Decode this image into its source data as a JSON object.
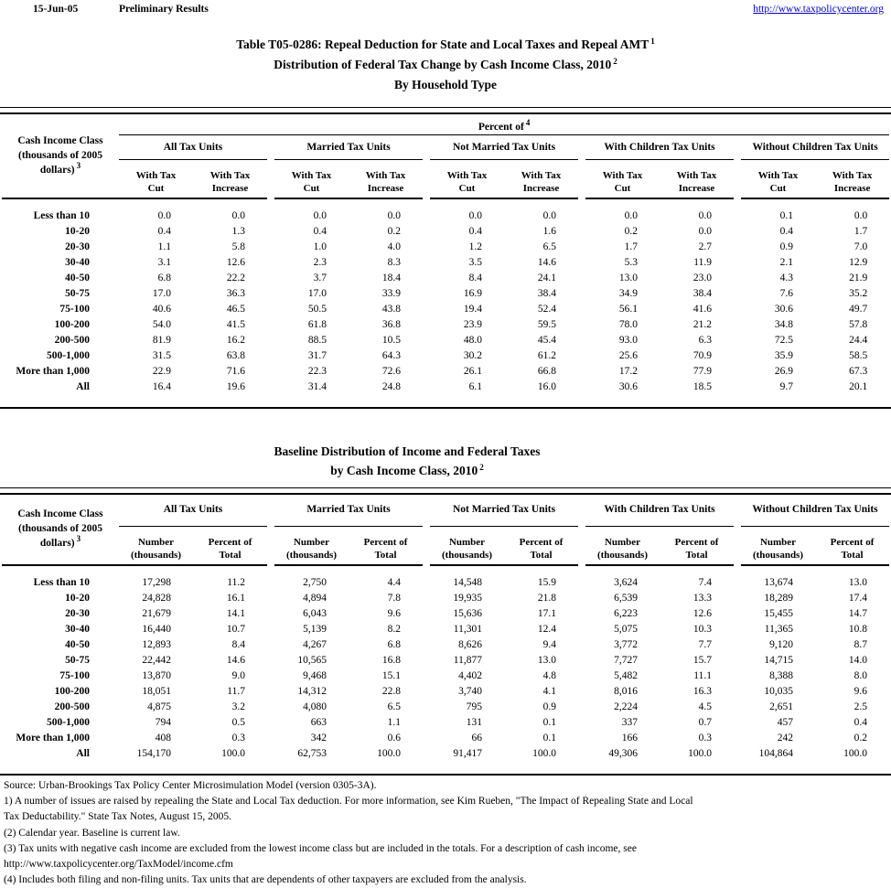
{
  "page": {
    "date": "15-Jun-05",
    "status": "Preliminary Results",
    "url": "http://www.taxpolicycenter.org",
    "colors": {
      "link": "#0000cc",
      "text": "#000000",
      "background": "#ffffff",
      "rule": "#000000"
    }
  },
  "title1": {
    "line1": "Table T05-0286: Repeal Deduction for State and Local Taxes and Repeal AMT",
    "line1_sup": "1",
    "line2": "Distribution of Federal Tax Change by Cash Income Class, 2010",
    "line2_sup": "2",
    "line3": "By Household Type"
  },
  "title2": {
    "line1": "Baseline Distribution of Income and Federal Taxes",
    "line2": "by Cash Income Class, 2010",
    "line2_sup": "2"
  },
  "row_label_header": {
    "line1": "Cash Income Class",
    "line2": "(thousands of 2005",
    "line3": "dollars)",
    "sup": "3"
  },
  "groups": [
    "All Tax Units",
    "Married Tax Units",
    "Not Married Tax Units",
    "With Children Tax Units",
    "Without Children Tax Units"
  ],
  "table1": {
    "span_header": "Percent of",
    "span_header_sup": "4",
    "sub_cut_l1": "With Tax",
    "sub_cut_l2": "Cut",
    "sub_inc_l1": "With Tax",
    "sub_inc_l2": "Increase",
    "rows": [
      [
        "Less than 10",
        "0.0",
        "0.0",
        "0.0",
        "0.0",
        "0.0",
        "0.0",
        "0.0",
        "0.0",
        "0.1",
        "0.0"
      ],
      [
        "10-20",
        "0.4",
        "1.3",
        "0.4",
        "0.2",
        "0.4",
        "1.6",
        "0.2",
        "0.0",
        "0.4",
        "1.7"
      ],
      [
        "20-30",
        "1.1",
        "5.8",
        "1.0",
        "4.0",
        "1.2",
        "6.5",
        "1.7",
        "2.7",
        "0.9",
        "7.0"
      ],
      [
        "30-40",
        "3.1",
        "12.6",
        "2.3",
        "8.3",
        "3.5",
        "14.6",
        "5.3",
        "11.9",
        "2.1",
        "12.9"
      ],
      [
        "40-50",
        "6.8",
        "22.2",
        "3.7",
        "18.4",
        "8.4",
        "24.1",
        "13.0",
        "23.0",
        "4.3",
        "21.9"
      ],
      [
        "50-75",
        "17.0",
        "36.3",
        "17.0",
        "33.9",
        "16.9",
        "38.4",
        "34.9",
        "38.4",
        "7.6",
        "35.2"
      ],
      [
        "75-100",
        "40.6",
        "46.5",
        "50.5",
        "43.8",
        "19.4",
        "52.4",
        "56.1",
        "41.6",
        "30.6",
        "49.7"
      ],
      [
        "100-200",
        "54.0",
        "41.5",
        "61.8",
        "36.8",
        "23.9",
        "59.5",
        "78.0",
        "21.2",
        "34.8",
        "57.8"
      ],
      [
        "200-500",
        "81.9",
        "16.2",
        "88.5",
        "10.5",
        "48.0",
        "45.4",
        "93.0",
        "6.3",
        "72.5",
        "24.4"
      ],
      [
        "500-1,000",
        "31.5",
        "63.8",
        "31.7",
        "64.3",
        "30.2",
        "61.2",
        "25.6",
        "70.9",
        "35.9",
        "58.5"
      ],
      [
        "More than 1,000",
        "22.9",
        "71.6",
        "22.3",
        "72.6",
        "26.1",
        "66.8",
        "17.2",
        "77.9",
        "26.9",
        "67.3"
      ],
      [
        "All",
        "16.4",
        "19.6",
        "31.4",
        "24.8",
        "6.1",
        "16.0",
        "30.6",
        "18.5",
        "9.7",
        "20.1"
      ]
    ]
  },
  "table2": {
    "sub_num_l1": "Number",
    "sub_num_l2": "(thousands)",
    "sub_pct_l1": "Percent of",
    "sub_pct_l2": "Total",
    "rows": [
      [
        "Less than 10",
        "17,298",
        "11.2",
        "2,750",
        "4.4",
        "14,548",
        "15.9",
        "3,624",
        "7.4",
        "13,674",
        "13.0"
      ],
      [
        "10-20",
        "24,828",
        "16.1",
        "4,894",
        "7.8",
        "19,935",
        "21.8",
        "6,539",
        "13.3",
        "18,289",
        "17.4"
      ],
      [
        "20-30",
        "21,679",
        "14.1",
        "6,043",
        "9.6",
        "15,636",
        "17.1",
        "6,223",
        "12.6",
        "15,455",
        "14.7"
      ],
      [
        "30-40",
        "16,440",
        "10.7",
        "5,139",
        "8.2",
        "11,301",
        "12.4",
        "5,075",
        "10.3",
        "11,365",
        "10.8"
      ],
      [
        "40-50",
        "12,893",
        "8.4",
        "4,267",
        "6.8",
        "8,626",
        "9.4",
        "3,772",
        "7.7",
        "9,120",
        "8.7"
      ],
      [
        "50-75",
        "22,442",
        "14.6",
        "10,565",
        "16.8",
        "11,877",
        "13.0",
        "7,727",
        "15.7",
        "14,715",
        "14.0"
      ],
      [
        "75-100",
        "13,870",
        "9.0",
        "9,468",
        "15.1",
        "4,402",
        "4.8",
        "5,482",
        "11.1",
        "8,388",
        "8.0"
      ],
      [
        "100-200",
        "18,051",
        "11.7",
        "14,312",
        "22.8",
        "3,740",
        "4.1",
        "8,016",
        "16.3",
        "10,035",
        "9.6"
      ],
      [
        "200-500",
        "4,875",
        "3.2",
        "4,080",
        "6.5",
        "795",
        "0.9",
        "2,224",
        "4.5",
        "2,651",
        "2.5"
      ],
      [
        "500-1,000",
        "794",
        "0.5",
        "663",
        "1.1",
        "131",
        "0.1",
        "337",
        "0.7",
        "457",
        "0.4"
      ],
      [
        "More than 1,000",
        "408",
        "0.3",
        "342",
        "0.6",
        "66",
        "0.1",
        "166",
        "0.3",
        "242",
        "0.2"
      ],
      [
        "All",
        "154,170",
        "100.0",
        "62,753",
        "100.0",
        "91,417",
        "100.0",
        "49,306",
        "100.0",
        "104,864",
        "100.0"
      ]
    ]
  },
  "notes": {
    "lines": [
      "Source: Urban-Brookings Tax Policy Center Microsimulation Model (version 0305-3A).",
      "1) A number of issues are raised by repealing the State and Local Tax deduction. For more information, see Kim Rueben, \"The Impact of Repealing State and Local",
      "Tax Deductability.\" State Tax Notes, August 15, 2005.",
      "(2) Calendar year. Baseline is current law.",
      "(3) Tax units with negative cash income are excluded from the lowest income class but are included in the totals. For a description of cash income, see",
      "http://www.taxpolicycenter.org/TaxModel/income.cfm",
      "(4) Includes both filing and non-filing units.  Tax units that are dependents of other taxpayers are excluded from the analysis."
    ]
  }
}
